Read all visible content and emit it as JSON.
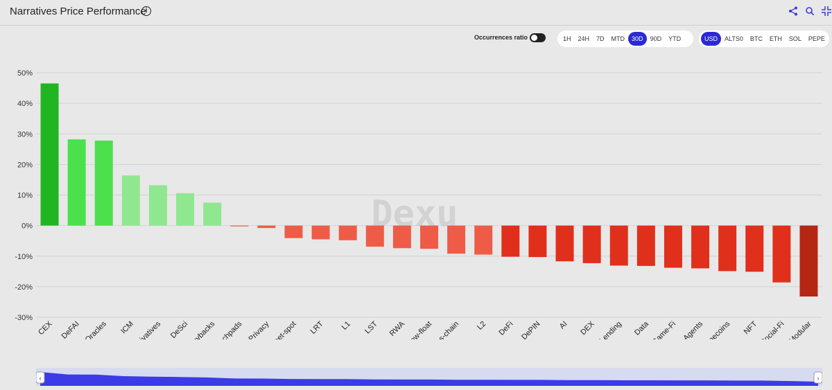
{
  "header": {
    "title": "Narratives Price Performance",
    "info_icon": "i"
  },
  "controls": {
    "occurrences_label": "Occurrences ratio",
    "occurrences_on": false,
    "timeframes": [
      "1H",
      "24H",
      "7D",
      "MTD",
      "30D",
      "90D",
      "YTD"
    ],
    "active_timeframe": "30D",
    "bases": [
      "USD",
      "ALTS0",
      "BTC",
      "ETH",
      "SOL",
      "PEPE"
    ],
    "active_base": "USD"
  },
  "colors": {
    "accent": "#2a2ad4",
    "green_dark": "#22b522",
    "green": "#4ce04c",
    "green_light": "#8fe88f",
    "red_light": "#ee5c48",
    "red": "#e0301c",
    "red_dark": "#b52712"
  },
  "chart_data": {
    "type": "bar",
    "categories": [
      "CEX",
      "DeFAI",
      "Oracles",
      "ICM",
      "Derivatives",
      "DeSci",
      "Buybacks",
      "Launchpads",
      "Privacy",
      "Sweet-spot",
      "LRT",
      "L1",
      "LST",
      "RWA",
      "Low-float",
      "Cross-chain",
      "L2",
      "DeFi",
      "DePIN",
      "AI",
      "DEX",
      "Lending",
      "Data",
      "Game-Fi",
      "AI-Agents",
      "Memecoins",
      "NFT",
      "Social-Fi",
      "Modular"
    ],
    "values": [
      46.5,
      28.2,
      27.8,
      16.4,
      13.2,
      10.6,
      7.5,
      -0.2,
      -0.8,
      -4.1,
      -4.5,
      -4.8,
      -6.9,
      -7.4,
      -7.6,
      -9.2,
      -9.5,
      -10.2,
      -10.3,
      -11.7,
      -12.3,
      -13.1,
      -13.2,
      -13.8,
      -14.0,
      -14.9,
      -15.1,
      -18.6,
      -23.2
    ],
    "yticks": [
      "50%",
      "40%",
      "30%",
      "20%",
      "10%",
      "0%",
      "-10%",
      "-20%",
      "-30%"
    ],
    "ylim": [
      -30,
      50
    ],
    "grid": true,
    "watermark": "Dexu"
  }
}
